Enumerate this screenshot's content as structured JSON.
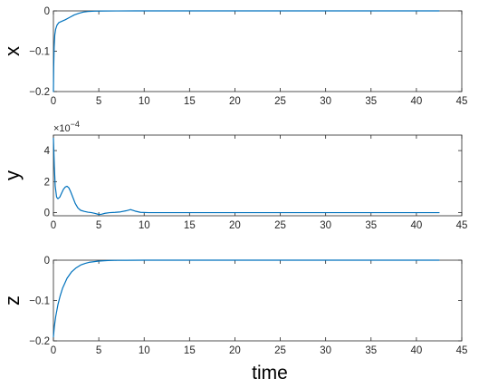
{
  "figure": {
    "xlabel": "time"
  },
  "colors": {
    "series": "#0072BD",
    "axes": "#262626"
  },
  "chart_data": [
    {
      "type": "line",
      "ylabel": "x",
      "xlim": [
        0,
        45
      ],
      "ylim": [
        -0.2,
        0
      ],
      "xticks": [
        0,
        5,
        10,
        15,
        20,
        25,
        30,
        35,
        40,
        45
      ],
      "yticks": [
        -0.2,
        -0.1,
        0
      ],
      "ytick_labels": [
        "−0.2",
        "−0.1",
        "0"
      ],
      "grid": false,
      "series": [
        {
          "x": [
            0,
            0.03,
            0.08,
            0.15,
            0.25,
            0.4,
            0.6,
            0.9,
            1.3,
            1.8,
            2.3,
            2.8,
            3.3,
            3.8,
            4.5,
            5.5,
            7,
            9,
            12,
            20,
            30,
            42.5
          ],
          "values": [
            -0.2,
            -0.14,
            -0.09,
            -0.06,
            -0.045,
            -0.035,
            -0.029,
            -0.026,
            -0.022,
            -0.016,
            -0.01,
            -0.006,
            -0.003,
            -0.0015,
            -0.0007,
            -0.0003,
            -0.0001,
            0,
            0,
            0,
            0,
            0
          ]
        }
      ]
    },
    {
      "type": "line",
      "ylabel": "y",
      "exponent_label": "×10",
      "exponent_power": "−4",
      "xlim": [
        0,
        45
      ],
      "ylim": [
        -0.2,
        5
      ],
      "xticks": [
        0,
        5,
        10,
        15,
        20,
        25,
        30,
        35,
        40,
        45
      ],
      "yticks": [
        0,
        2,
        4
      ],
      "ytick_labels": [
        "0",
        "2",
        "4"
      ],
      "grid": false,
      "series": [
        {
          "x": [
            0,
            0.1,
            0.2,
            0.35,
            0.5,
            0.7,
            0.9,
            1.1,
            1.3,
            1.5,
            1.7,
            1.9,
            2.1,
            2.4,
            2.7,
            3.0,
            3.4,
            3.8,
            4.2,
            4.6,
            5.0,
            5.3,
            5.7,
            6.2,
            6.8,
            7.4,
            8.0,
            8.5,
            9.0,
            9.6,
            10.5,
            12,
            15,
            20,
            30,
            42.5
          ],
          "values": [
            4.8,
            3.0,
            1.7,
            1.0,
            0.9,
            1.0,
            1.25,
            1.5,
            1.65,
            1.7,
            1.6,
            1.35,
            1.05,
            0.6,
            0.3,
            0.15,
            0.08,
            0.03,
            0.0,
            -0.05,
            -0.12,
            -0.1,
            -0.04,
            0.0,
            0.02,
            0.05,
            0.12,
            0.2,
            0.1,
            0.02,
            0.0,
            0.0,
            0.0,
            0.0,
            0.0,
            0.0
          ]
        }
      ]
    },
    {
      "type": "line",
      "ylabel": "z",
      "xlim": [
        0,
        45
      ],
      "ylim": [
        -0.2,
        0
      ],
      "xticks": [
        0,
        5,
        10,
        15,
        20,
        25,
        30,
        35,
        40,
        45
      ],
      "yticks": [
        -0.2,
        -0.1,
        0
      ],
      "ytick_labels": [
        "−0.2",
        "−0.1",
        "0"
      ],
      "grid": false,
      "series": [
        {
          "x": [
            0,
            0.1,
            0.25,
            0.5,
            0.75,
            1.0,
            1.5,
            2.0,
            2.5,
            3.0,
            3.5,
            4.0,
            5.0,
            6.0,
            7.0,
            8.0,
            10,
            12,
            15,
            20,
            30,
            42.5
          ],
          "values": [
            -0.19,
            -0.165,
            -0.14,
            -0.11,
            -0.088,
            -0.07,
            -0.045,
            -0.029,
            -0.019,
            -0.012,
            -0.008,
            -0.005,
            -0.0022,
            -0.0009,
            -0.0004,
            -0.0002,
            -5e-05,
            0,
            0,
            0,
            0,
            0
          ]
        }
      ]
    }
  ]
}
